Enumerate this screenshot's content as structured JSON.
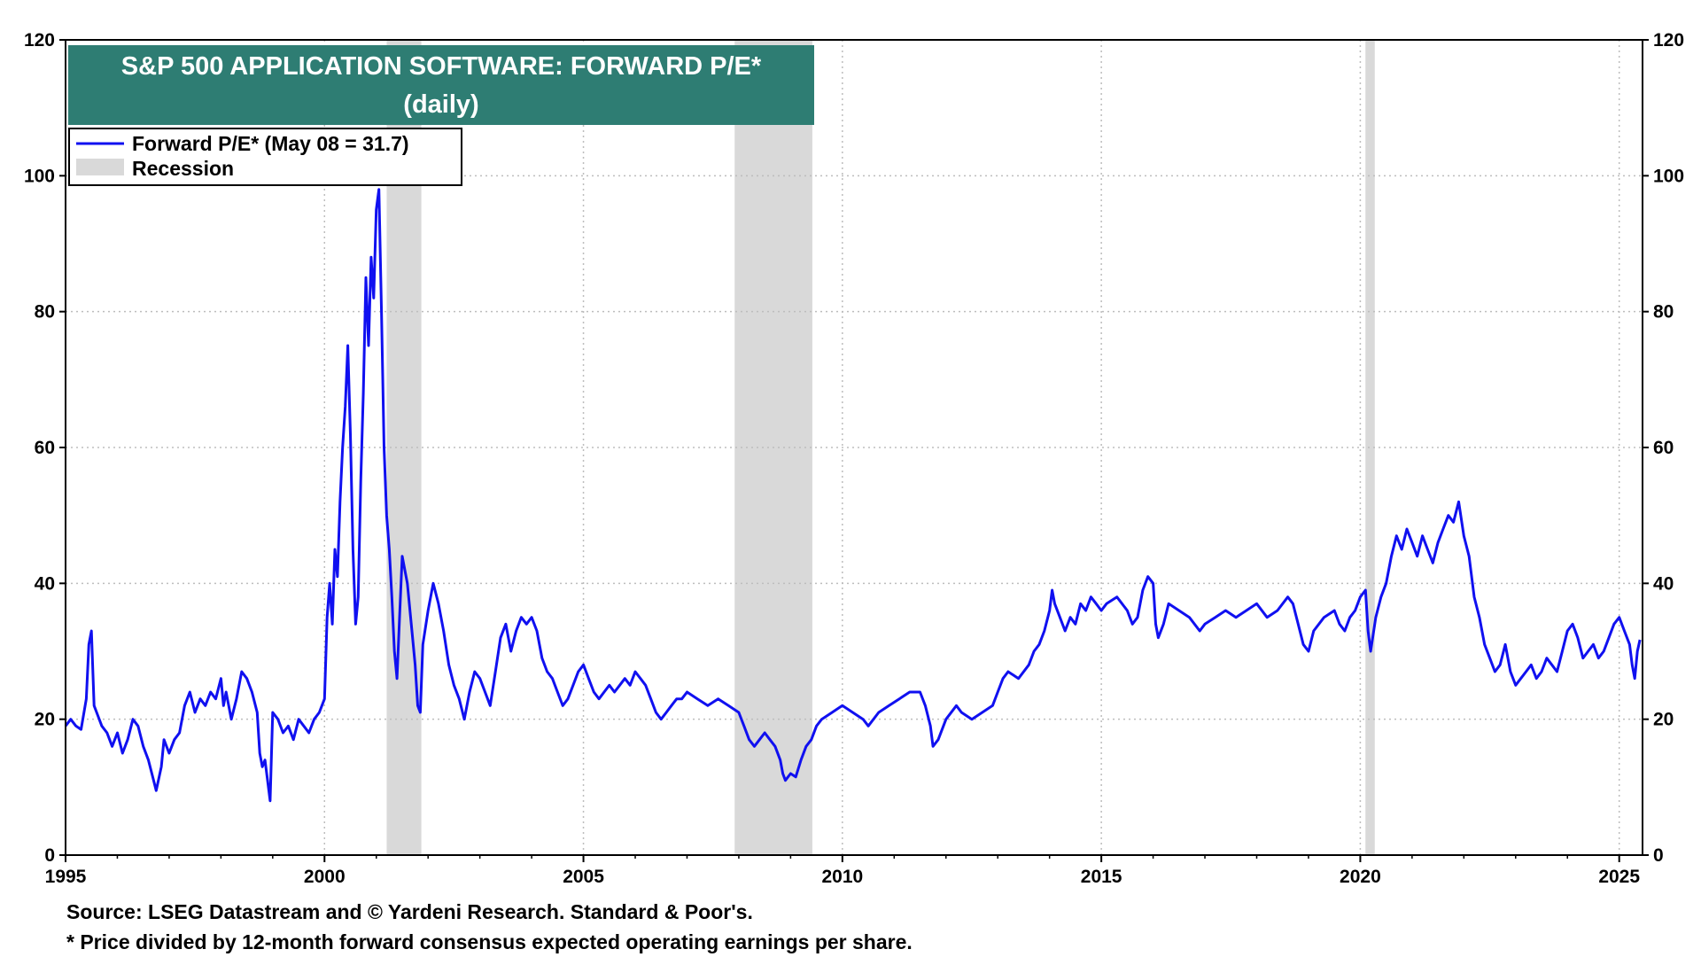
{
  "chart_data": {
    "type": "line",
    "title": "S&P 500 APPLICATION SOFTWARE: FORWARD P/E*",
    "subtitle": "(daily)",
    "xlabel": "",
    "ylabel": "",
    "xlim": [
      1995.0,
      2025.45
    ],
    "ylim": [
      0,
      120
    ],
    "x_ticks": [
      "1995",
      "2000",
      "2005",
      "2010",
      "2015",
      "2020",
      "2025"
    ],
    "y_ticks_left": [
      "0",
      "20",
      "40",
      "60",
      "80",
      "100",
      "120"
    ],
    "y_ticks_right": [
      "0",
      "20",
      "40",
      "60",
      "80",
      "100",
      "120"
    ],
    "grid": true,
    "legend_position": "top-left",
    "legend": {
      "series_label": "Forward P/E* (May 08 = 31.7)",
      "recession_label": "Recession"
    },
    "colors": {
      "series": "#1010f0",
      "recession": "#d9d9d9",
      "title_bg": "#2e7d73",
      "grid": "#bdbdbd"
    },
    "recessions": [
      {
        "start": 2001.2,
        "end": 2001.87
      },
      {
        "start": 2007.92,
        "end": 2009.42
      },
      {
        "start": 2020.1,
        "end": 2020.28
      }
    ],
    "series": [
      {
        "name": "Forward P/E*",
        "points": [
          [
            1995.0,
            19
          ],
          [
            1995.1,
            20
          ],
          [
            1995.2,
            19
          ],
          [
            1995.3,
            18.5
          ],
          [
            1995.4,
            23
          ],
          [
            1995.45,
            31
          ],
          [
            1995.5,
            33
          ],
          [
            1995.55,
            22
          ],
          [
            1995.6,
            21
          ],
          [
            1995.7,
            19
          ],
          [
            1995.8,
            18
          ],
          [
            1995.9,
            16
          ],
          [
            1996.0,
            18
          ],
          [
            1996.1,
            15
          ],
          [
            1996.2,
            17
          ],
          [
            1996.3,
            20
          ],
          [
            1996.4,
            19
          ],
          [
            1996.5,
            16
          ],
          [
            1996.6,
            14
          ],
          [
            1996.7,
            11
          ],
          [
            1996.75,
            9.5
          ],
          [
            1996.85,
            13
          ],
          [
            1996.9,
            17
          ],
          [
            1997.0,
            15
          ],
          [
            1997.1,
            17
          ],
          [
            1997.2,
            18
          ],
          [
            1997.3,
            22
          ],
          [
            1997.4,
            24
          ],
          [
            1997.5,
            21
          ],
          [
            1997.6,
            23
          ],
          [
            1997.7,
            22
          ],
          [
            1997.8,
            24
          ],
          [
            1997.9,
            23
          ],
          [
            1998.0,
            26
          ],
          [
            1998.05,
            22
          ],
          [
            1998.1,
            24
          ],
          [
            1998.2,
            20
          ],
          [
            1998.3,
            23
          ],
          [
            1998.4,
            27
          ],
          [
            1998.5,
            26
          ],
          [
            1998.6,
            24
          ],
          [
            1998.7,
            21
          ],
          [
            1998.75,
            15
          ],
          [
            1998.8,
            13
          ],
          [
            1998.85,
            14
          ],
          [
            1998.9,
            11
          ],
          [
            1998.95,
            8
          ],
          [
            1999.0,
            21
          ],
          [
            1999.1,
            20
          ],
          [
            1999.2,
            18
          ],
          [
            1999.3,
            19
          ],
          [
            1999.4,
            17
          ],
          [
            1999.5,
            20
          ],
          [
            1999.6,
            19
          ],
          [
            1999.7,
            18
          ],
          [
            1999.8,
            20
          ],
          [
            1999.9,
            21
          ],
          [
            2000.0,
            23
          ],
          [
            2000.05,
            35
          ],
          [
            2000.1,
            40
          ],
          [
            2000.15,
            34
          ],
          [
            2000.2,
            45
          ],
          [
            2000.25,
            41
          ],
          [
            2000.3,
            52
          ],
          [
            2000.35,
            60
          ],
          [
            2000.4,
            66
          ],
          [
            2000.45,
            75
          ],
          [
            2000.5,
            62
          ],
          [
            2000.55,
            45
          ],
          [
            2000.6,
            34
          ],
          [
            2000.65,
            38
          ],
          [
            2000.7,
            55
          ],
          [
            2000.75,
            68
          ],
          [
            2000.8,
            85
          ],
          [
            2000.85,
            75
          ],
          [
            2000.9,
            88
          ],
          [
            2000.95,
            82
          ],
          [
            2001.0,
            95
          ],
          [
            2001.05,
            98
          ],
          [
            2001.1,
            80
          ],
          [
            2001.15,
            60
          ],
          [
            2001.2,
            50
          ],
          [
            2001.25,
            45
          ],
          [
            2001.3,
            38
          ],
          [
            2001.35,
            30
          ],
          [
            2001.4,
            26
          ],
          [
            2001.45,
            35
          ],
          [
            2001.5,
            44
          ],
          [
            2001.6,
            40
          ],
          [
            2001.7,
            32
          ],
          [
            2001.75,
            28
          ],
          [
            2001.8,
            22
          ],
          [
            2001.85,
            21
          ],
          [
            2001.9,
            31
          ],
          [
            2002.0,
            36
          ],
          [
            2002.1,
            40
          ],
          [
            2002.2,
            37
          ],
          [
            2002.3,
            33
          ],
          [
            2002.4,
            28
          ],
          [
            2002.5,
            25
          ],
          [
            2002.6,
            23
          ],
          [
            2002.7,
            20
          ],
          [
            2002.8,
            24
          ],
          [
            2002.9,
            27
          ],
          [
            2003.0,
            26
          ],
          [
            2003.1,
            24
          ],
          [
            2003.2,
            22
          ],
          [
            2003.3,
            27
          ],
          [
            2003.4,
            32
          ],
          [
            2003.5,
            34
          ],
          [
            2003.6,
            30
          ],
          [
            2003.7,
            33
          ],
          [
            2003.8,
            35
          ],
          [
            2003.9,
            34
          ],
          [
            2004.0,
            35
          ],
          [
            2004.1,
            33
          ],
          [
            2004.2,
            29
          ],
          [
            2004.3,
            27
          ],
          [
            2004.4,
            26
          ],
          [
            2004.5,
            24
          ],
          [
            2004.6,
            22
          ],
          [
            2004.7,
            23
          ],
          [
            2004.8,
            25
          ],
          [
            2004.9,
            27
          ],
          [
            2005.0,
            28
          ],
          [
            2005.1,
            26
          ],
          [
            2005.2,
            24
          ],
          [
            2005.3,
            23
          ],
          [
            2005.4,
            24
          ],
          [
            2005.5,
            25
          ],
          [
            2005.6,
            24
          ],
          [
            2005.7,
            25
          ],
          [
            2005.8,
            26
          ],
          [
            2005.9,
            25
          ],
          [
            2006.0,
            27
          ],
          [
            2006.1,
            26
          ],
          [
            2006.2,
            25
          ],
          [
            2006.3,
            23
          ],
          [
            2006.4,
            21
          ],
          [
            2006.5,
            20
          ],
          [
            2006.6,
            21
          ],
          [
            2006.7,
            22
          ],
          [
            2006.8,
            23
          ],
          [
            2006.9,
            23
          ],
          [
            2007.0,
            24
          ],
          [
            2007.2,
            23
          ],
          [
            2007.4,
            22
          ],
          [
            2007.6,
            23
          ],
          [
            2007.8,
            22
          ],
          [
            2008.0,
            21
          ],
          [
            2008.1,
            19
          ],
          [
            2008.2,
            17
          ],
          [
            2008.3,
            16
          ],
          [
            2008.4,
            17
          ],
          [
            2008.5,
            18
          ],
          [
            2008.6,
            17
          ],
          [
            2008.7,
            16
          ],
          [
            2008.8,
            14
          ],
          [
            2008.85,
            12
          ],
          [
            2008.9,
            11
          ],
          [
            2009.0,
            12
          ],
          [
            2009.1,
            11.5
          ],
          [
            2009.2,
            14
          ],
          [
            2009.3,
            16
          ],
          [
            2009.4,
            17
          ],
          [
            2009.5,
            19
          ],
          [
            2009.6,
            20
          ],
          [
            2009.8,
            21
          ],
          [
            2010.0,
            22
          ],
          [
            2010.2,
            21
          ],
          [
            2010.4,
            20
          ],
          [
            2010.5,
            19
          ],
          [
            2010.7,
            21
          ],
          [
            2010.9,
            22
          ],
          [
            2011.1,
            23
          ],
          [
            2011.3,
            24
          ],
          [
            2011.5,
            24
          ],
          [
            2011.6,
            22
          ],
          [
            2011.7,
            19
          ],
          [
            2011.75,
            16
          ],
          [
            2011.85,
            17
          ],
          [
            2012.0,
            20
          ],
          [
            2012.2,
            22
          ],
          [
            2012.3,
            21
          ],
          [
            2012.5,
            20
          ],
          [
            2012.7,
            21
          ],
          [
            2012.9,
            22
          ],
          [
            2013.0,
            24
          ],
          [
            2013.1,
            26
          ],
          [
            2013.2,
            27
          ],
          [
            2013.4,
            26
          ],
          [
            2013.6,
            28
          ],
          [
            2013.7,
            30
          ],
          [
            2013.8,
            31
          ],
          [
            2013.9,
            33
          ],
          [
            2014.0,
            36
          ],
          [
            2014.05,
            39
          ],
          [
            2014.1,
            37
          ],
          [
            2014.2,
            35
          ],
          [
            2014.3,
            33
          ],
          [
            2014.4,
            35
          ],
          [
            2014.5,
            34
          ],
          [
            2014.6,
            37
          ],
          [
            2014.7,
            36
          ],
          [
            2014.8,
            38
          ],
          [
            2014.9,
            37
          ],
          [
            2015.0,
            36
          ],
          [
            2015.1,
            37
          ],
          [
            2015.3,
            38
          ],
          [
            2015.5,
            36
          ],
          [
            2015.6,
            34
          ],
          [
            2015.7,
            35
          ],
          [
            2015.8,
            39
          ],
          [
            2015.9,
            41
          ],
          [
            2016.0,
            40
          ],
          [
            2016.05,
            34
          ],
          [
            2016.1,
            32
          ],
          [
            2016.2,
            34
          ],
          [
            2016.3,
            37
          ],
          [
            2016.5,
            36
          ],
          [
            2016.7,
            35
          ],
          [
            2016.9,
            33
          ],
          [
            2017.0,
            34
          ],
          [
            2017.2,
            35
          ],
          [
            2017.4,
            36
          ],
          [
            2017.6,
            35
          ],
          [
            2017.8,
            36
          ],
          [
            2018.0,
            37
          ],
          [
            2018.2,
            35
          ],
          [
            2018.4,
            36
          ],
          [
            2018.6,
            38
          ],
          [
            2018.7,
            37
          ],
          [
            2018.8,
            34
          ],
          [
            2018.9,
            31
          ],
          [
            2019.0,
            30
          ],
          [
            2019.1,
            33
          ],
          [
            2019.3,
            35
          ],
          [
            2019.5,
            36
          ],
          [
            2019.6,
            34
          ],
          [
            2019.7,
            33
          ],
          [
            2019.8,
            35
          ],
          [
            2019.9,
            36
          ],
          [
            2020.0,
            38
          ],
          [
            2020.1,
            39
          ],
          [
            2020.15,
            33
          ],
          [
            2020.2,
            30
          ],
          [
            2020.3,
            35
          ],
          [
            2020.4,
            38
          ],
          [
            2020.5,
            40
          ],
          [
            2020.6,
            44
          ],
          [
            2020.7,
            47
          ],
          [
            2020.8,
            45
          ],
          [
            2020.9,
            48
          ],
          [
            2021.0,
            46
          ],
          [
            2021.1,
            44
          ],
          [
            2021.2,
            47
          ],
          [
            2021.3,
            45
          ],
          [
            2021.4,
            43
          ],
          [
            2021.5,
            46
          ],
          [
            2021.6,
            48
          ],
          [
            2021.7,
            50
          ],
          [
            2021.8,
            49
          ],
          [
            2021.9,
            52
          ],
          [
            2022.0,
            47
          ],
          [
            2022.1,
            44
          ],
          [
            2022.2,
            38
          ],
          [
            2022.3,
            35
          ],
          [
            2022.4,
            31
          ],
          [
            2022.5,
            29
          ],
          [
            2022.6,
            27
          ],
          [
            2022.7,
            28
          ],
          [
            2022.8,
            31
          ],
          [
            2022.9,
            27
          ],
          [
            2023.0,
            25
          ],
          [
            2023.1,
            26
          ],
          [
            2023.2,
            27
          ],
          [
            2023.3,
            28
          ],
          [
            2023.4,
            26
          ],
          [
            2023.5,
            27
          ],
          [
            2023.6,
            29
          ],
          [
            2023.7,
            28
          ],
          [
            2023.8,
            27
          ],
          [
            2023.9,
            30
          ],
          [
            2024.0,
            33
          ],
          [
            2024.1,
            34
          ],
          [
            2024.2,
            32
          ],
          [
            2024.3,
            29
          ],
          [
            2024.4,
            30
          ],
          [
            2024.5,
            31
          ],
          [
            2024.6,
            29
          ],
          [
            2024.7,
            30
          ],
          [
            2024.8,
            32
          ],
          [
            2024.9,
            34
          ],
          [
            2025.0,
            35
          ],
          [
            2025.1,
            33
          ],
          [
            2025.2,
            31
          ],
          [
            2025.25,
            28
          ],
          [
            2025.3,
            26
          ],
          [
            2025.35,
            30
          ],
          [
            2025.4,
            31.7
          ]
        ]
      }
    ]
  },
  "footnotes": {
    "source": "Source: LSEG Datastream and © Yardeni Research. Standard & Poor's.",
    "note": "* Price divided by 12-month forward consensus expected operating earnings per share."
  }
}
